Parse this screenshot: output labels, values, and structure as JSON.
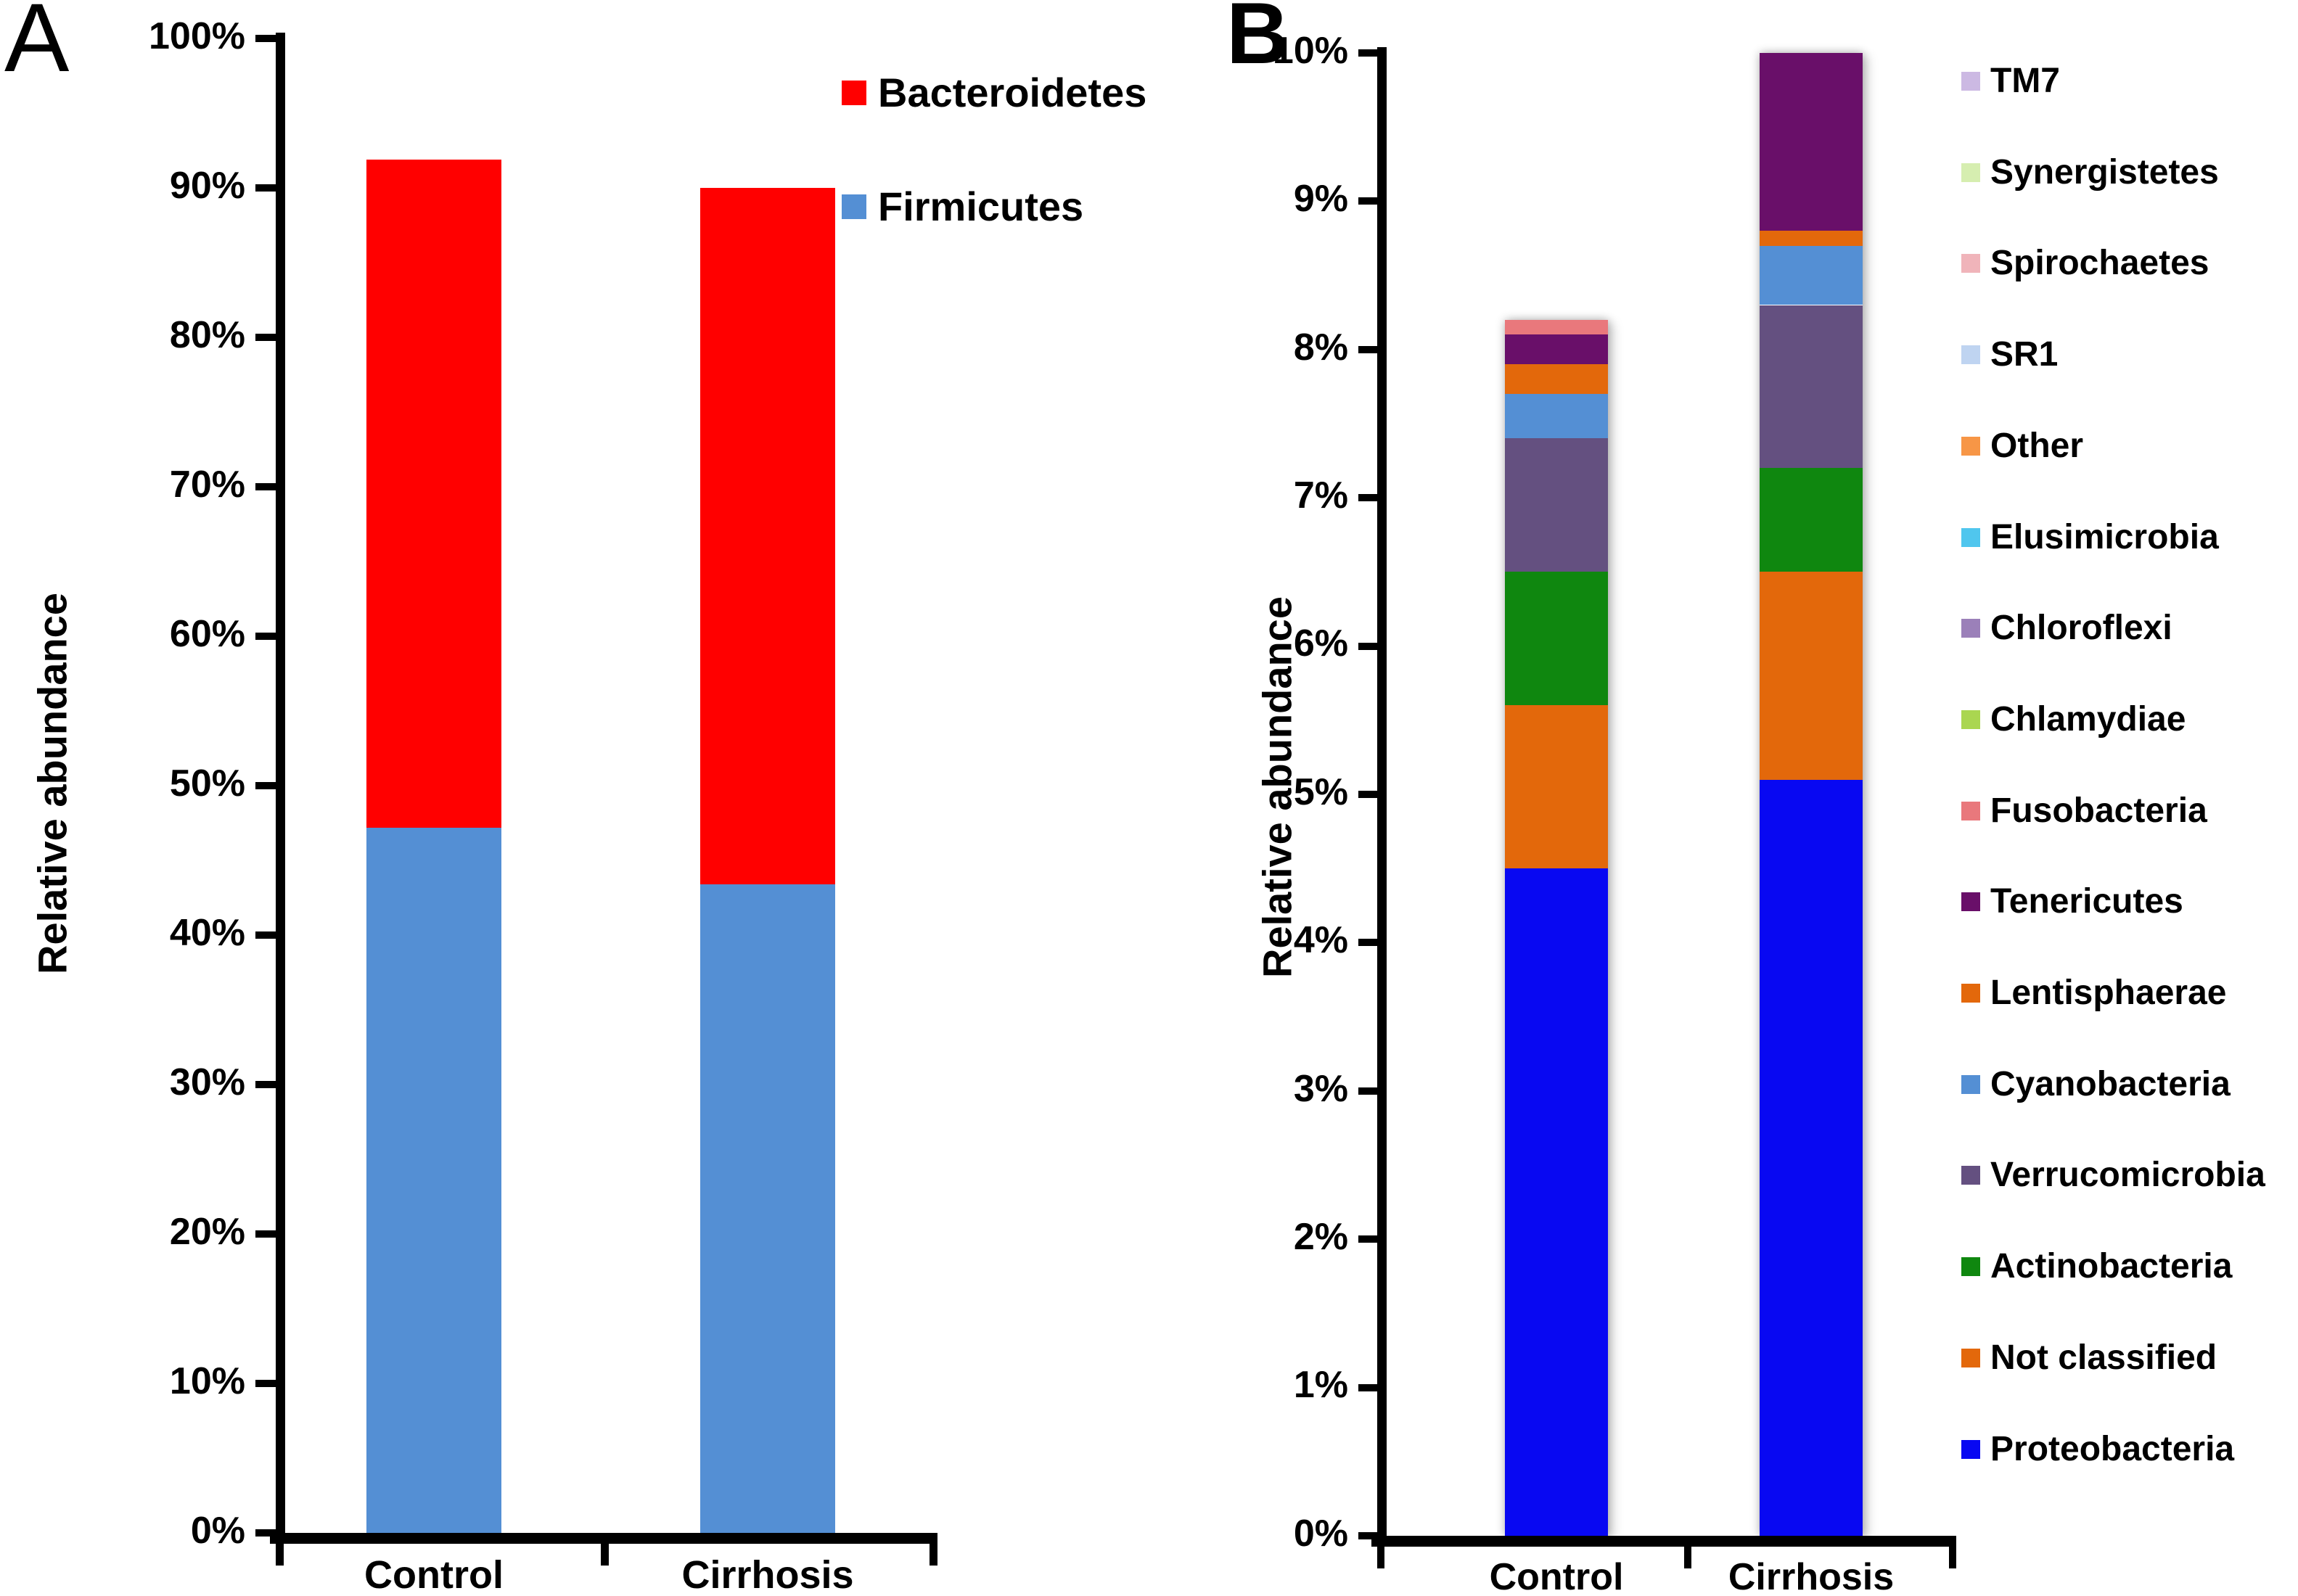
{
  "figure": {
    "background": "#FFFFFF"
  },
  "chart_data": [
    {
      "type": "bar",
      "stacked": true,
      "panel_letter": "A",
      "ylabel": "Relative abundance",
      "categories": [
        "Control",
        "Cirrhosis"
      ],
      "ylim": [
        0,
        100
      ],
      "ytick_step": 10,
      "ytick_suffix": "%",
      "grid": false,
      "bar_totals": [
        91.9,
        90.0
      ],
      "series": [
        {
          "name": "Firmicutes",
          "color": "#548FD4",
          "values": [
            47.2,
            43.4
          ]
        },
        {
          "name": "Bacteroidetes",
          "color": "#FF0000",
          "values": [
            44.7,
            46.6
          ]
        }
      ],
      "legend": {
        "position": "upper-right",
        "items": [
          {
            "label": "Bacteroidetes",
            "color": "#FF0000"
          },
          {
            "label": "Firmicutes",
            "color": "#548FD4"
          }
        ]
      }
    },
    {
      "type": "bar",
      "stacked": true,
      "panel_letter": "B",
      "ylabel": "Relative abundance",
      "categories": [
        "Control",
        "Cirrhosis"
      ],
      "ylim": [
        0,
        10
      ],
      "ytick_step": 1,
      "ytick_suffix": "%",
      "grid": false,
      "bar_totals": [
        8.2,
        10.0
      ],
      "series": [
        {
          "name": "Proteobacteria",
          "color": "#0808F2",
          "values": [
            4.5,
            5.1
          ]
        },
        {
          "name": "Not classified",
          "color": "#E3680B",
          "values": [
            1.1,
            1.4
          ]
        },
        {
          "name": "Actinobacteria",
          "color": "#0F870F",
          "values": [
            0.9,
            0.7
          ]
        },
        {
          "name": "Verrucomicrobia",
          "color": "#645080",
          "values": [
            0.9,
            1.1
          ]
        },
        {
          "name": "Cyanobacteria",
          "color": "#548FD4",
          "values": [
            0.3,
            0.4
          ]
        },
        {
          "name": "Lentisphaerae",
          "color": "#E3680B",
          "values": [
            0.2,
            0.1
          ]
        },
        {
          "name": "Tenericutes",
          "color": "#690F69",
          "values": [
            0.2,
            1.2
          ]
        },
        {
          "name": "Fusobacteria",
          "color": "#E9787C",
          "values": [
            0.1,
            0
          ]
        },
        {
          "name": "Chlamydiae",
          "color": "#AAD650",
          "values": [
            0,
            0
          ]
        },
        {
          "name": "Chloroflexi",
          "color": "#9B80B9",
          "values": [
            0,
            0
          ]
        },
        {
          "name": "Elusimicrobia",
          "color": "#50C6EE",
          "values": [
            0,
            0
          ]
        },
        {
          "name": "Other",
          "color": "#F79646",
          "values": [
            0,
            0
          ]
        },
        {
          "name": "SR1",
          "color": "#BFD4F1",
          "values": [
            0,
            0
          ]
        },
        {
          "name": "Spirochaetes",
          "color": "#F0B4BA",
          "values": [
            0,
            0
          ]
        },
        {
          "name": "Synergistetes",
          "color": "#D6EEB0",
          "values": [
            0,
            0
          ]
        },
        {
          "name": "TM7",
          "color": "#CCB9E3",
          "values": [
            0,
            0
          ]
        }
      ],
      "legend": {
        "position": "right",
        "items": [
          {
            "label": "TM7",
            "color": "#CCB9E3"
          },
          {
            "label": "Synergistetes",
            "color": "#D6EEB0"
          },
          {
            "label": "Spirochaetes",
            "color": "#F0B4BA"
          },
          {
            "label": "SR1",
            "color": "#BFD4F1"
          },
          {
            "label": "Other",
            "color": "#F79646"
          },
          {
            "label": "Elusimicrobia",
            "color": "#50C6EE"
          },
          {
            "label": "Chloroflexi",
            "color": "#9B80B9"
          },
          {
            "label": "Chlamydiae",
            "color": "#AAD650"
          },
          {
            "label": "Fusobacteria",
            "color": "#E9787C"
          },
          {
            "label": "Tenericutes",
            "color": "#690F69"
          },
          {
            "label": "Lentisphaerae",
            "color": "#E3680B"
          },
          {
            "label": "Cyanobacteria",
            "color": "#548FD4"
          },
          {
            "label": "Verrucomicrobia",
            "color": "#645080"
          },
          {
            "label": "Actinobacteria",
            "color": "#0F870F"
          },
          {
            "label": "Not classified",
            "color": "#E3680B"
          },
          {
            "label": "Proteobacteria",
            "color": "#0808F2"
          }
        ]
      }
    }
  ]
}
